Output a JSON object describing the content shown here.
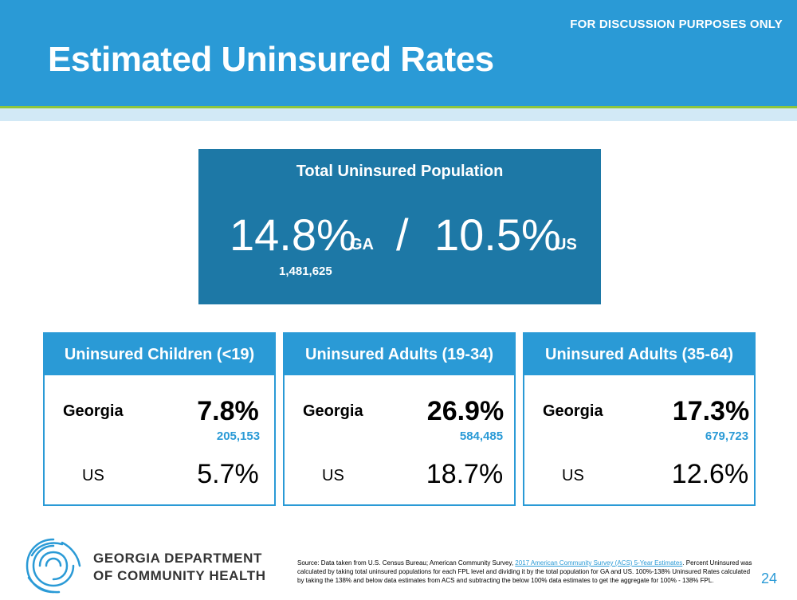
{
  "header": {
    "title": "Estimated Uninsured Rates",
    "disclaimer": "FOR DISCUSSION PURPOSES ONLY"
  },
  "total": {
    "title": "Total Uninsured Population",
    "ga_pct": "14.8%",
    "ga_tag": "GA",
    "separator": "/",
    "us_pct": "10.5%",
    "us_tag": "US",
    "ga_count": "1,481,625"
  },
  "cards": [
    {
      "title": "Uninsured Children (<19)",
      "ga_label": "Georgia",
      "ga_value": "7.8%",
      "ga_count": "205,153",
      "us_label": "US",
      "us_value": "5.7%"
    },
    {
      "title": "Uninsured Adults (19-34)",
      "ga_label": "Georgia",
      "ga_value": "26.9%",
      "ga_count": "584,485",
      "us_label": "US",
      "us_value": "18.7%"
    },
    {
      "title": "Uninsured Adults (35-64)",
      "ga_label": "Georgia",
      "ga_value": "17.3%",
      "ga_count": "679,723",
      "us_label": "US",
      "us_value": "12.6%"
    }
  ],
  "footer": {
    "org_line1": "GEORGIA DEPARTMENT",
    "org_line2": "OF COMMUNITY HEALTH",
    "source_prefix": "Source: Data taken from U.S. Census Bureau; American Community Survey, ",
    "source_link": "2017 American Community Survey (ACS) 5-Year Estimates",
    "source_suffix": ". Percent Uninsured was calculated by taking total uninsured populations for each FPL level and dividing it by the total population for GA and US. 100%-138% Uninsured Rates calculated by taking the 138% and below data estimates from ACS and subtracting the below 100% data estimates to get the aggregate for 100% - 138% FPL.",
    "page_number": "24"
  },
  "colors": {
    "header_blue": "#2a9ad6",
    "box_blue": "#1d78a6",
    "accent_green": "#8cc63f"
  }
}
